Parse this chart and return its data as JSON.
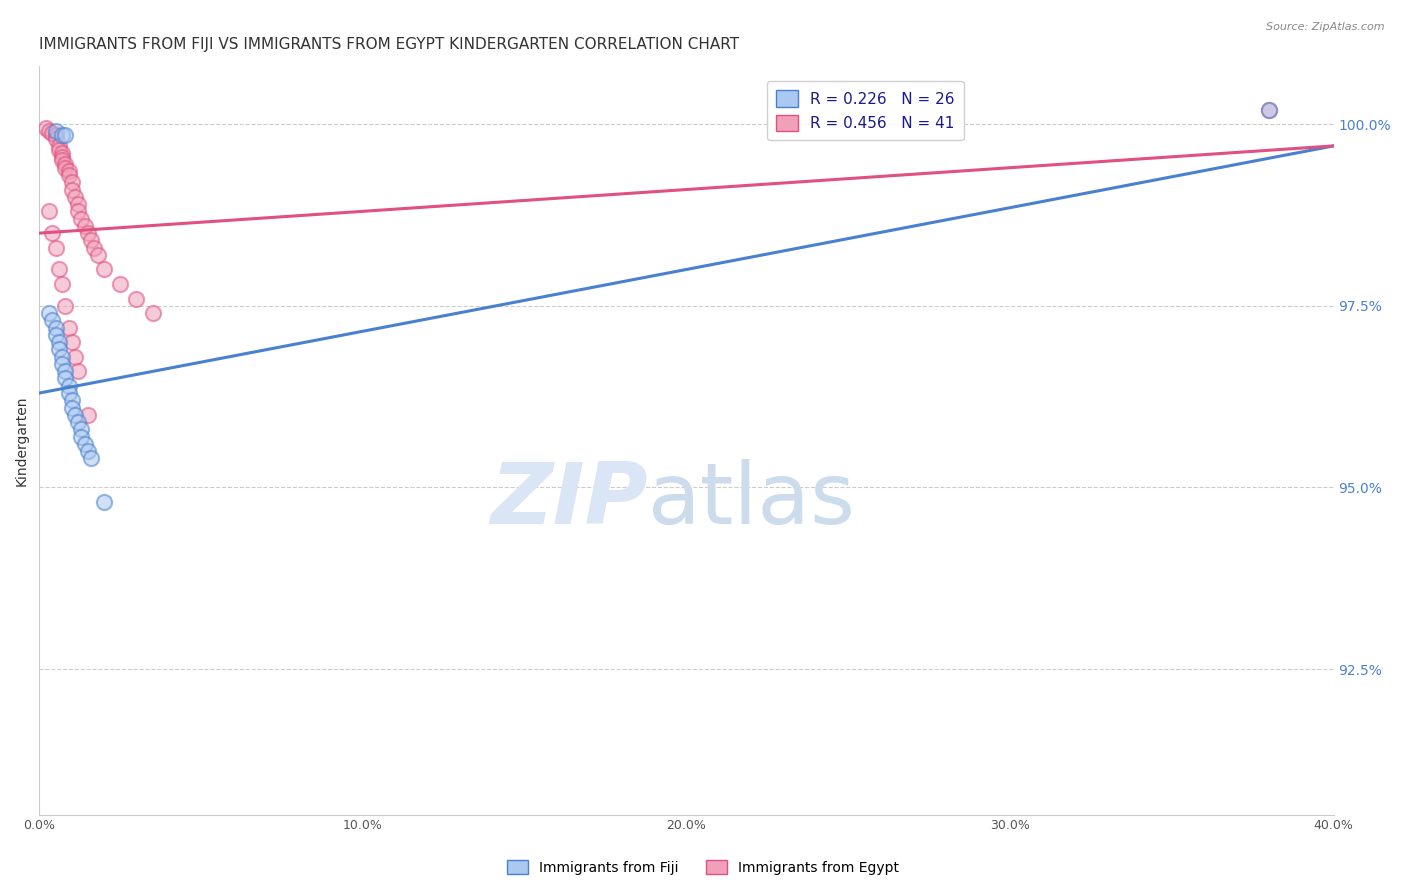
{
  "title": "IMMIGRANTS FROM FIJI VS IMMIGRANTS FROM EGYPT KINDERGARTEN CORRELATION CHART",
  "source": "Source: ZipAtlas.com",
  "ylabel": "Kindergarten",
  "ylabel_right_labels": [
    "100.0%",
    "97.5%",
    "95.0%",
    "92.5%"
  ],
  "ylabel_right_values": [
    1.0,
    0.975,
    0.95,
    0.925
  ],
  "xlim": [
    0.0,
    0.4
  ],
  "ylim": [
    0.905,
    1.008
  ],
  "fiji_R": "0.226",
  "fiji_N": "26",
  "egypt_R": "0.456",
  "egypt_N": "41",
  "fiji_color": "#aac8f0",
  "egypt_color": "#f0a0b8",
  "fiji_line_color": "#4a80d0",
  "egypt_line_color": "#e05080",
  "watermark_zip": "ZIP",
  "watermark_atlas": "atlas",
  "fiji_scatter_x": [
    0.005,
    0.007,
    0.008,
    0.003,
    0.004,
    0.005,
    0.005,
    0.006,
    0.006,
    0.007,
    0.007,
    0.008,
    0.008,
    0.009,
    0.009,
    0.01,
    0.01,
    0.011,
    0.012,
    0.013,
    0.013,
    0.014,
    0.015,
    0.016,
    0.02,
    0.38
  ],
  "fiji_scatter_y": [
    0.999,
    0.9985,
    0.9985,
    0.974,
    0.973,
    0.972,
    0.971,
    0.97,
    0.969,
    0.968,
    0.967,
    0.966,
    0.965,
    0.964,
    0.963,
    0.962,
    0.961,
    0.96,
    0.959,
    0.958,
    0.957,
    0.956,
    0.955,
    0.954,
    0.948,
    1.002
  ],
  "egypt_scatter_x": [
    0.002,
    0.003,
    0.004,
    0.005,
    0.005,
    0.006,
    0.006,
    0.007,
    0.007,
    0.007,
    0.008,
    0.008,
    0.009,
    0.009,
    0.01,
    0.01,
    0.011,
    0.012,
    0.012,
    0.013,
    0.014,
    0.015,
    0.016,
    0.017,
    0.018,
    0.02,
    0.025,
    0.03,
    0.035,
    0.003,
    0.004,
    0.005,
    0.006,
    0.007,
    0.008,
    0.009,
    0.01,
    0.011,
    0.012,
    0.015,
    0.38
  ],
  "egypt_scatter_y": [
    0.9995,
    0.999,
    0.9988,
    0.9985,
    0.998,
    0.997,
    0.9965,
    0.996,
    0.9955,
    0.995,
    0.9945,
    0.994,
    0.9935,
    0.993,
    0.992,
    0.991,
    0.99,
    0.989,
    0.988,
    0.987,
    0.986,
    0.985,
    0.984,
    0.983,
    0.982,
    0.98,
    0.978,
    0.976,
    0.974,
    0.988,
    0.985,
    0.983,
    0.98,
    0.978,
    0.975,
    0.972,
    0.97,
    0.968,
    0.966,
    0.96,
    1.002
  ],
  "fiji_trend_x": [
    0.0,
    0.4
  ],
  "fiji_trend_y": [
    0.963,
    0.997
  ],
  "egypt_trend_x": [
    0.0,
    0.4
  ],
  "egypt_trend_y": [
    0.985,
    0.997
  ],
  "background_color": "#ffffff",
  "grid_color": "#cccccc",
  "title_fontsize": 11,
  "axis_label_fontsize": 10,
  "tick_fontsize": 9,
  "scatter_size": 120,
  "scatter_alpha": 0.55,
  "scatter_linewidth": 1.5
}
